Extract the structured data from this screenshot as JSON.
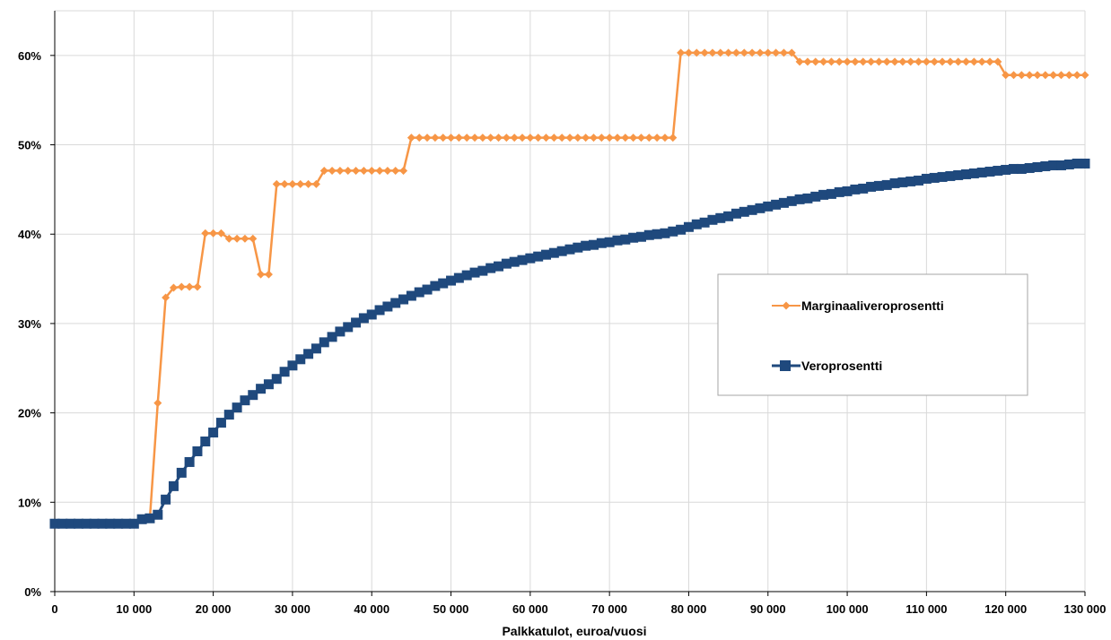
{
  "chart_data": {
    "type": "line",
    "xlabel": "Palkkatulot, euroa/vuosi",
    "ylabel": "",
    "xlim": [
      0,
      130000
    ],
    "ylim": [
      0,
      0.65
    ],
    "x_ticks": [
      0,
      10000,
      20000,
      30000,
      40000,
      50000,
      60000,
      70000,
      80000,
      90000,
      100000,
      110000,
      120000,
      130000
    ],
    "x_tick_labels": [
      "0",
      "10 000",
      "20 000",
      "30 000",
      "40 000",
      "50 000",
      "60 000",
      "70 000",
      "80 000",
      "90 000",
      "100 000",
      "110 000",
      "120 000",
      "130 000"
    ],
    "y_ticks": [
      0,
      0.1,
      0.2,
      0.3,
      0.4,
      0.5,
      0.6
    ],
    "y_tick_labels": [
      "0%",
      "10%",
      "20%",
      "30%",
      "40%",
      "50%",
      "60%"
    ],
    "grid": true,
    "legend_position": "right",
    "series": [
      {
        "name": "Marginaaliveroprosentti",
        "color": "#f79646",
        "marker": "diamond",
        "x": [
          0,
          1000,
          2000,
          3000,
          4000,
          5000,
          6000,
          7000,
          8000,
          9000,
          10000,
          11000,
          12000,
          13000,
          14000,
          15000,
          16000,
          17000,
          18000,
          19000,
          20000,
          21000,
          22000,
          23000,
          24000,
          25000,
          26000,
          27000,
          28000,
          29000,
          30000,
          31000,
          32000,
          33000,
          34000,
          35000,
          36000,
          37000,
          38000,
          39000,
          40000,
          41000,
          42000,
          43000,
          44000,
          45000,
          46000,
          47000,
          48000,
          49000,
          50000,
          51000,
          52000,
          53000,
          54000,
          55000,
          56000,
          57000,
          58000,
          59000,
          60000,
          61000,
          62000,
          63000,
          64000,
          65000,
          66000,
          67000,
          68000,
          69000,
          70000,
          71000,
          72000,
          73000,
          74000,
          75000,
          76000,
          77000,
          78000,
          79000,
          80000,
          81000,
          82000,
          83000,
          84000,
          85000,
          86000,
          87000,
          88000,
          89000,
          90000,
          91000,
          92000,
          93000,
          94000,
          95000,
          96000,
          97000,
          98000,
          99000,
          100000,
          101000,
          102000,
          103000,
          104000,
          105000,
          106000,
          107000,
          108000,
          109000,
          110000,
          111000,
          112000,
          113000,
          114000,
          115000,
          116000,
          117000,
          118000,
          119000,
          120000,
          121000,
          122000,
          123000,
          124000,
          125000,
          126000,
          127000,
          128000,
          129000,
          130000
        ],
        "y": [
          0.076,
          0.076,
          0.076,
          0.076,
          0.076,
          0.076,
          0.076,
          0.076,
          0.076,
          0.076,
          0.076,
          0.082,
          0.082,
          0.211,
          0.329,
          0.34,
          0.341,
          0.341,
          0.341,
          0.401,
          0.401,
          0.401,
          0.395,
          0.395,
          0.395,
          0.395,
          0.355,
          0.355,
          0.456,
          0.456,
          0.456,
          0.456,
          0.456,
          0.456,
          0.471,
          0.471,
          0.471,
          0.471,
          0.471,
          0.471,
          0.471,
          0.471,
          0.471,
          0.471,
          0.471,
          0.508,
          0.508,
          0.508,
          0.508,
          0.508,
          0.508,
          0.508,
          0.508,
          0.508,
          0.508,
          0.508,
          0.508,
          0.508,
          0.508,
          0.508,
          0.508,
          0.508,
          0.508,
          0.508,
          0.508,
          0.508,
          0.508,
          0.508,
          0.508,
          0.508,
          0.508,
          0.508,
          0.508,
          0.508,
          0.508,
          0.508,
          0.508,
          0.508,
          0.508,
          0.603,
          0.603,
          0.603,
          0.603,
          0.603,
          0.603,
          0.603,
          0.603,
          0.603,
          0.603,
          0.603,
          0.603,
          0.603,
          0.603,
          0.603,
          0.593,
          0.593,
          0.593,
          0.593,
          0.593,
          0.593,
          0.593,
          0.593,
          0.593,
          0.593,
          0.593,
          0.593,
          0.593,
          0.593,
          0.593,
          0.593,
          0.593,
          0.593,
          0.593,
          0.593,
          0.593,
          0.593,
          0.593,
          0.593,
          0.593,
          0.593,
          0.578,
          0.578,
          0.578,
          0.578,
          0.578,
          0.578,
          0.578,
          0.578,
          0.578,
          0.578,
          0.578
        ]
      },
      {
        "name": "Veroprosentti",
        "color": "#1f497d",
        "marker": "square",
        "x": [
          0,
          1000,
          2000,
          3000,
          4000,
          5000,
          6000,
          7000,
          8000,
          9000,
          10000,
          11000,
          12000,
          13000,
          14000,
          15000,
          16000,
          17000,
          18000,
          19000,
          20000,
          21000,
          22000,
          23000,
          24000,
          25000,
          26000,
          27000,
          28000,
          29000,
          30000,
          31000,
          32000,
          33000,
          34000,
          35000,
          36000,
          37000,
          38000,
          39000,
          40000,
          41000,
          42000,
          43000,
          44000,
          45000,
          46000,
          47000,
          48000,
          49000,
          50000,
          51000,
          52000,
          53000,
          54000,
          55000,
          56000,
          57000,
          58000,
          59000,
          60000,
          61000,
          62000,
          63000,
          64000,
          65000,
          66000,
          67000,
          68000,
          69000,
          70000,
          71000,
          72000,
          73000,
          74000,
          75000,
          76000,
          77000,
          78000,
          79000,
          80000,
          81000,
          82000,
          83000,
          84000,
          85000,
          86000,
          87000,
          88000,
          89000,
          90000,
          91000,
          92000,
          93000,
          94000,
          95000,
          96000,
          97000,
          98000,
          99000,
          100000,
          101000,
          102000,
          103000,
          104000,
          105000,
          106000,
          107000,
          108000,
          109000,
          110000,
          111000,
          112000,
          113000,
          114000,
          115000,
          116000,
          117000,
          118000,
          119000,
          120000,
          121000,
          122000,
          123000,
          124000,
          125000,
          126000,
          127000,
          128000,
          129000,
          130000
        ],
        "y": [
          0.076,
          0.076,
          0.076,
          0.076,
          0.076,
          0.076,
          0.076,
          0.076,
          0.076,
          0.076,
          0.076,
          0.081,
          0.082,
          0.086,
          0.103,
          0.118,
          0.133,
          0.145,
          0.157,
          0.168,
          0.178,
          0.189,
          0.198,
          0.206,
          0.214,
          0.22,
          0.227,
          0.232,
          0.238,
          0.246,
          0.253,
          0.26,
          0.266,
          0.272,
          0.279,
          0.285,
          0.291,
          0.296,
          0.301,
          0.306,
          0.31,
          0.315,
          0.319,
          0.323,
          0.327,
          0.331,
          0.335,
          0.338,
          0.342,
          0.345,
          0.348,
          0.351,
          0.354,
          0.357,
          0.359,
          0.362,
          0.364,
          0.367,
          0.369,
          0.371,
          0.373,
          0.375,
          0.377,
          0.379,
          0.381,
          0.383,
          0.385,
          0.387,
          0.388,
          0.39,
          0.391,
          0.393,
          0.394,
          0.396,
          0.397,
          0.399,
          0.4,
          0.401,
          0.403,
          0.405,
          0.408,
          0.411,
          0.413,
          0.416,
          0.418,
          0.42,
          0.423,
          0.425,
          0.427,
          0.429,
          0.431,
          0.433,
          0.435,
          0.437,
          0.439,
          0.44,
          0.442,
          0.444,
          0.445,
          0.447,
          0.448,
          0.45,
          0.451,
          0.453,
          0.454,
          0.455,
          0.457,
          0.458,
          0.459,
          0.46,
          0.462,
          0.463,
          0.464,
          0.465,
          0.466,
          0.467,
          0.468,
          0.469,
          0.47,
          0.471,
          0.472,
          0.473,
          0.473,
          0.474,
          0.475,
          0.476,
          0.477,
          0.477,
          0.478,
          0.479,
          0.479
        ]
      }
    ]
  }
}
